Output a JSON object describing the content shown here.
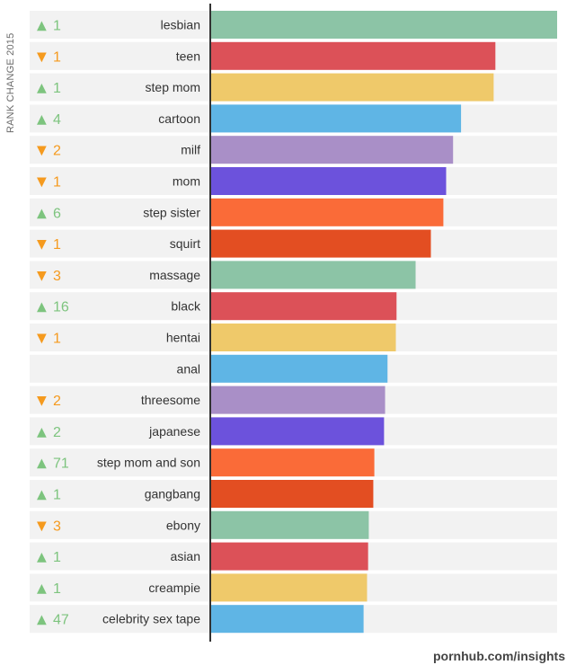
{
  "chart_data": {
    "type": "bar",
    "orientation": "horizontal",
    "ylabel": "RANK CHANGE 2015",
    "source": "pornhub.com/insights",
    "xlim": [
      0,
      100
    ],
    "grid": false,
    "categories": [
      "lesbian",
      "teen",
      "step mom",
      "cartoon",
      "milf",
      "mom",
      "step sister",
      "squirt",
      "massage",
      "black",
      "hentai",
      "anal",
      "threesome",
      "japanese",
      "step mom and son",
      "gangbang",
      "ebony",
      "asian",
      "creampie",
      "celebrity sex tape"
    ],
    "rank_change": [
      {
        "dir": "up",
        "value": "1"
      },
      {
        "dir": "down",
        "value": "1"
      },
      {
        "dir": "up",
        "value": "1"
      },
      {
        "dir": "up",
        "value": "4"
      },
      {
        "dir": "down",
        "value": "2"
      },
      {
        "dir": "down",
        "value": "1"
      },
      {
        "dir": "up",
        "value": "6"
      },
      {
        "dir": "down",
        "value": "1"
      },
      {
        "dir": "down",
        "value": "3"
      },
      {
        "dir": "up",
        "value": "16"
      },
      {
        "dir": "down",
        "value": "1"
      },
      {
        "dir": "none",
        "value": ""
      },
      {
        "dir": "down",
        "value": "2"
      },
      {
        "dir": "up",
        "value": "2"
      },
      {
        "dir": "up",
        "value": "71"
      },
      {
        "dir": "up",
        "value": "1"
      },
      {
        "dir": "down",
        "value": "3"
      },
      {
        "dir": "up",
        "value": "1"
      },
      {
        "dir": "up",
        "value": "1"
      },
      {
        "dir": "up",
        "value": "47"
      }
    ],
    "values": [
      100,
      82.2,
      81.7,
      72.3,
      70.0,
      68.0,
      67.2,
      63.6,
      59.2,
      53.7,
      53.5,
      51.1,
      50.4,
      50.1,
      47.3,
      47.0,
      45.7,
      45.5,
      45.2,
      44.2
    ],
    "bar_colors": [
      "#8cc4a6",
      "#dc5158",
      "#efc96a",
      "#5fb5e5",
      "#a98fc7",
      "#6c52dc",
      "#fa6b38",
      "#e34e22"
    ],
    "arrow_up_color": "#7dc47e",
    "arrow_down_color": "#f59a1e",
    "arrow_up_glyph": "▲",
    "arrow_down_glyph": "▼"
  }
}
